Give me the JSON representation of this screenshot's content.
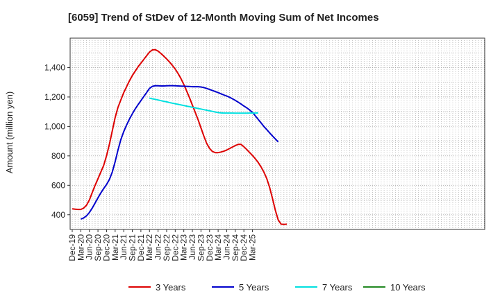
{
  "chart_data": {
    "type": "line",
    "title": "[6059]  Trend of StDev of 12-Month Moving Sum of Net Incomes",
    "xlabel": "",
    "ylabel": "Amount (million yen)",
    "ylim": [
      300,
      1600
    ],
    "y_ticks": [
      400,
      600,
      800,
      1000,
      1200,
      1400
    ],
    "x_ticks": [
      "Dec-19",
      "Mar-20",
      "Jun-20",
      "Sep-20",
      "Dec-20",
      "Mar-21",
      "Jun-21",
      "Sep-21",
      "Dec-21",
      "Mar-22",
      "Jun-22",
      "Sep-22",
      "Dec-22",
      "Mar-23",
      "Jun-23",
      "Sep-23",
      "Dec-23",
      "Mar-24",
      "Jun-24",
      "Sep-24",
      "Dec-24",
      "Mar-25"
    ],
    "grid": true,
    "legend_position": "bottom",
    "series": [
      {
        "name": "3 Years",
        "color": "#dd0000",
        "start_month_index": 0,
        "values": [
          440,
          438,
          436,
          436,
          445,
          465,
          500,
          550,
          600,
          645,
          690,
          735,
          800,
          880,
          970,
          1060,
          1130,
          1180,
          1230,
          1270,
          1310,
          1345,
          1375,
          1405,
          1430,
          1455,
          1480,
          1505,
          1520,
          1522,
          1512,
          1496,
          1478,
          1458,
          1438,
          1415,
          1390,
          1360,
          1325,
          1285,
          1240,
          1195,
          1145,
          1095,
          1045,
          990,
          935,
          885,
          850,
          830,
          822,
          822,
          826,
          832,
          840,
          850,
          860,
          870,
          878,
          878,
          862,
          843,
          823,
          803,
          780,
          755,
          725,
          690,
          645,
          585,
          510,
          430,
          365,
          336,
          334,
          336
        ]
      },
      {
        "name": "5 Years",
        "color": "#0000cc",
        "start_month_index": 3,
        "values": [
          370,
          378,
          393,
          415,
          445,
          480,
          515,
          548,
          578,
          605,
          640,
          690,
          760,
          840,
          910,
          965,
          1010,
          1050,
          1085,
          1118,
          1148,
          1175,
          1203,
          1230,
          1258,
          1272,
          1277,
          1276,
          1275,
          1275,
          1276,
          1277,
          1277,
          1276,
          1275,
          1274,
          1273,
          1272,
          1271,
          1270,
          1270,
          1270,
          1268,
          1264,
          1258,
          1251,
          1244,
          1237,
          1230,
          1222,
          1214,
          1206,
          1198,
          1188,
          1177,
          1165,
          1152,
          1139,
          1126,
          1112,
          1095,
          1072,
          1048,
          1024,
          1000,
          978,
          956,
          935,
          915,
          895
        ]
      },
      {
        "name": "7 Years",
        "color": "#00e0e0",
        "start_month_index": 27,
        "values": [
          1192,
          1188,
          1184,
          1180,
          1175,
          1171,
          1167,
          1162,
          1158,
          1154,
          1150,
          1146,
          1142,
          1138,
          1134,
          1130,
          1126,
          1122,
          1118,
          1114,
          1110,
          1106,
          1102,
          1098,
          1094,
          1092,
          1091,
          1091,
          1091,
          1091,
          1090,
          1090,
          1090,
          1090,
          1090,
          1091,
          1091,
          1091,
          1092
        ]
      },
      {
        "name": "10 Years",
        "color": "#228822",
        "start_month_index": 0,
        "values": []
      }
    ]
  }
}
